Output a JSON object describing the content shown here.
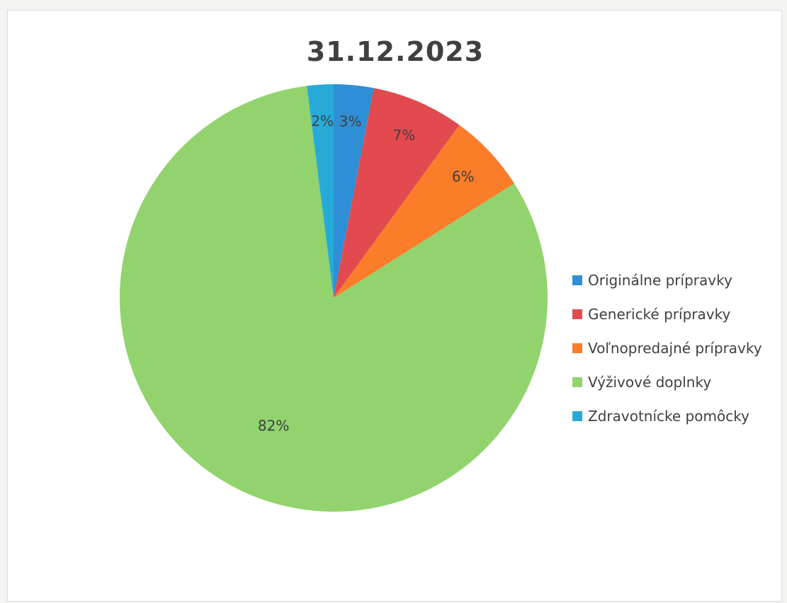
{
  "chart_data": {
    "type": "pie",
    "title": "31.12.2023",
    "slices": [
      {
        "label": "Originálne prípravky",
        "value": 3,
        "display": "3%",
        "color": "#2e8fd6"
      },
      {
        "label": "Generické prípravky",
        "value": 7,
        "display": "7%",
        "color": "#e24a4f"
      },
      {
        "label": "Voľnopredajné prípravky",
        "value": 6,
        "display": "6%",
        "color": "#fb7d2a"
      },
      {
        "label": "Výživové doplnky",
        "value": 82,
        "display": "82%",
        "color": "#92d36e"
      },
      {
        "label": "Zdravotnícke pomôcky",
        "value": 2,
        "display": "2%",
        "color": "#26abd9"
      }
    ],
    "legend_position": "right",
    "start_angle_deg": 0,
    "direction": "clockwise"
  }
}
